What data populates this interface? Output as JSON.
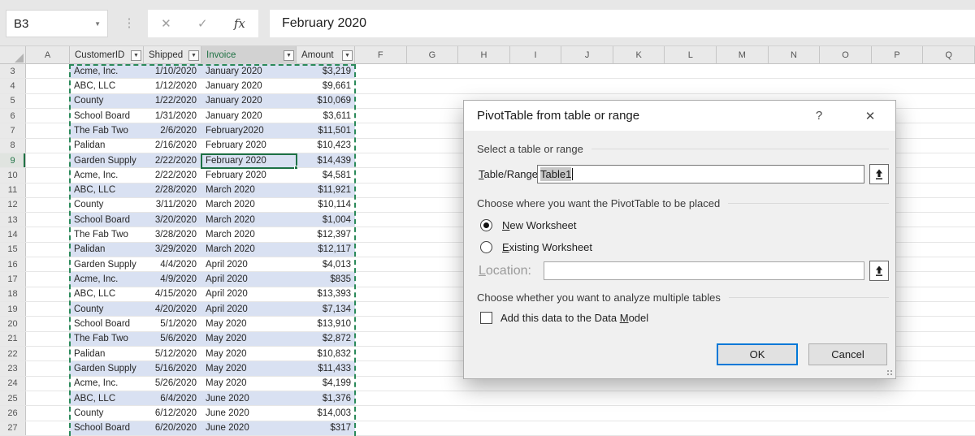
{
  "topbar": {
    "name_box": "B3",
    "formula": "February 2020",
    "icons": {
      "name_dropdown": "▼",
      "more_dots": "⋮",
      "cancel": "✕",
      "enter": "✓",
      "fx": "fx"
    }
  },
  "sheet": {
    "selected_row": 9,
    "columns": {
      "corner": "",
      "first_letter": "A",
      "table_headers": [
        {
          "label": "CustomerID",
          "selected": false
        },
        {
          "label": "Shipped",
          "selected": false
        },
        {
          "label": "Invoice",
          "selected": true
        },
        {
          "label": "Amount",
          "selected": false
        }
      ],
      "filter_icon": "▼",
      "letters": [
        "F",
        "G",
        "H",
        "I",
        "J",
        "K",
        "L",
        "M",
        "N",
        "O",
        "P",
        "Q"
      ]
    },
    "rows": [
      {
        "n": 3,
        "customer": "Acme, Inc.",
        "shipped": "1/10/2020",
        "invoice": "January 2020",
        "amount": "$3,219",
        "banded": true
      },
      {
        "n": 4,
        "customer": "ABC, LLC",
        "shipped": "1/12/2020",
        "invoice": "January 2020",
        "amount": "$9,661",
        "banded": false
      },
      {
        "n": 5,
        "customer": "County",
        "shipped": "1/22/2020",
        "invoice": "January 2020",
        "amount": "$10,069",
        "banded": true
      },
      {
        "n": 6,
        "customer": "School Board",
        "shipped": "1/31/2020",
        "invoice": "January 2020",
        "amount": "$3,611",
        "banded": false
      },
      {
        "n": 7,
        "customer": "The Fab Two",
        "shipped": "2/6/2020",
        "invoice": "February2020",
        "amount": "$11,501",
        "banded": true
      },
      {
        "n": 8,
        "customer": "Palidan",
        "shipped": "2/16/2020",
        "invoice": "February 2020",
        "amount": "$10,423",
        "banded": false
      },
      {
        "n": 9,
        "customer": "Garden Supply",
        "shipped": "2/22/2020",
        "invoice": "February 2020",
        "amount": "$14,439",
        "banded": true
      },
      {
        "n": 10,
        "customer": "Acme, Inc.",
        "shipped": "2/22/2020",
        "invoice": "February 2020",
        "amount": "$4,581",
        "banded": false
      },
      {
        "n": 11,
        "customer": "ABC, LLC",
        "shipped": "2/28/2020",
        "invoice": "March 2020",
        "amount": "$11,921",
        "banded": true
      },
      {
        "n": 12,
        "customer": "County",
        "shipped": "3/11/2020",
        "invoice": "March 2020",
        "amount": "$10,114",
        "banded": false
      },
      {
        "n": 13,
        "customer": "School Board",
        "shipped": "3/20/2020",
        "invoice": "March 2020",
        "amount": "$1,004",
        "banded": true
      },
      {
        "n": 14,
        "customer": "The Fab Two",
        "shipped": "3/28/2020",
        "invoice": "March 2020",
        "amount": "$12,397",
        "banded": false
      },
      {
        "n": 15,
        "customer": "Palidan",
        "shipped": "3/29/2020",
        "invoice": "March 2020",
        "amount": "$12,117",
        "banded": true
      },
      {
        "n": 16,
        "customer": "Garden Supply",
        "shipped": "4/4/2020",
        "invoice": "April 2020",
        "amount": "$4,013",
        "banded": false
      },
      {
        "n": 17,
        "customer": "Acme, Inc.",
        "shipped": "4/9/2020",
        "invoice": "April 2020",
        "amount": "$835",
        "banded": true
      },
      {
        "n": 18,
        "customer": "ABC, LLC",
        "shipped": "4/15/2020",
        "invoice": "April 2020",
        "amount": "$13,393",
        "banded": false
      },
      {
        "n": 19,
        "customer": "County",
        "shipped": "4/20/2020",
        "invoice": "April 2020",
        "amount": "$7,134",
        "banded": true
      },
      {
        "n": 20,
        "customer": "School Board",
        "shipped": "5/1/2020",
        "invoice": "May 2020",
        "amount": "$13,910",
        "banded": false
      },
      {
        "n": 21,
        "customer": "The Fab Two",
        "shipped": "5/6/2020",
        "invoice": "May 2020",
        "amount": "$2,872",
        "banded": true
      },
      {
        "n": 22,
        "customer": "Palidan",
        "shipped": "5/12/2020",
        "invoice": "May 2020",
        "amount": "$10,832",
        "banded": false
      },
      {
        "n": 23,
        "customer": "Garden Supply",
        "shipped": "5/16/2020",
        "invoice": "May 2020",
        "amount": "$11,433",
        "banded": true
      },
      {
        "n": 24,
        "customer": "Acme, Inc.",
        "shipped": "5/26/2020",
        "invoice": "May 2020",
        "amount": "$4,199",
        "banded": false
      },
      {
        "n": 25,
        "customer": "ABC, LLC",
        "shipped": "6/4/2020",
        "invoice": "June 2020",
        "amount": "$1,376",
        "banded": true
      },
      {
        "n": 26,
        "customer": "County",
        "shipped": "6/12/2020",
        "invoice": "June 2020",
        "amount": "$14,003",
        "banded": false
      },
      {
        "n": 27,
        "customer": "School Board",
        "shipped": "6/20/2020",
        "invoice": "June 2020",
        "amount": "$317",
        "banded": true
      }
    ],
    "colors": {
      "banded_fill": "#d9e1f2",
      "selection_green": "#217346",
      "grid_line": "#e2e2e2"
    }
  },
  "dialog": {
    "title": "PivotTable from table or range",
    "help_icon": "?",
    "close_icon": "✕",
    "section_select": "Select a table or range",
    "table_range_label": {
      "accel": "T",
      "post": "able/Range:"
    },
    "table_range_value": "Table1",
    "section_place": "Choose where you want the PivotTable to be placed",
    "radio_new": {
      "accel": "N",
      "post": "ew Worksheet",
      "selected": true
    },
    "radio_existing": {
      "accel": "E",
      "post": "xisting Worksheet",
      "selected": false
    },
    "location_label": {
      "accel": "L",
      "post": "ocation:"
    },
    "location_value": "",
    "section_multi": "Choose whether you want to analyze multiple tables",
    "checkbox_label": {
      "pre": "Add this data to the Data ",
      "accel": "M",
      "post": "odel",
      "checked": false
    },
    "ok_label": "OK",
    "cancel_label": "Cancel",
    "colors": {
      "ok_border": "#0078d7"
    }
  }
}
